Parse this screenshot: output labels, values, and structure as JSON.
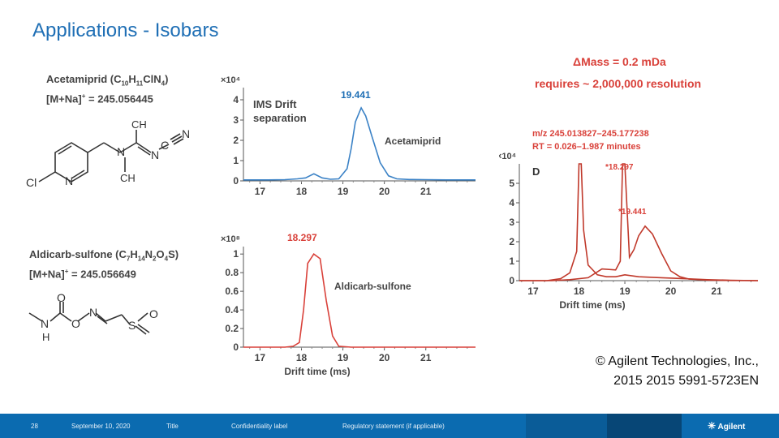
{
  "slide": {
    "title": "Applications - Isobars",
    "copyright_line1": "© Agilent Technologies, Inc.,",
    "copyright_line2": "2015 2015 5991-5723EN"
  },
  "compounds": {
    "acetamiprid": {
      "name": "Acetamiprid (C",
      "sub1": "10",
      "h": "H",
      "sub2": "11",
      "rest": "ClN",
      "sub3": "4",
      "close": ")",
      "ion": "[M+Na]",
      "ion_sup": "+",
      "ion_mass": " = 245.056445"
    },
    "aldicarb": {
      "name": "Aldicarb-sulfone (C",
      "sub1": "7",
      "h": "H",
      "sub2": "14",
      "n": "N",
      "sub3": "2",
      "o": "O",
      "sub4": "4",
      "close": "S)",
      "ion": "[M+Na]",
      "ion_sup": "+",
      "ion_mass": " = 245.056649"
    }
  },
  "annotations": {
    "delta_mass": "ΔMass = 0.2 mDa",
    "resolution": "requires ~ 2,000,000 resolution",
    "mz_range": "m/z 245.013827–245.177238",
    "rt_range": "RT = 0.026–1.987 minutes",
    "panel_d": "D",
    "ims_drift": "IMS Drift",
    "separation": "separation",
    "acetamiprid_label": "Acetamiprid",
    "aldicarb_label": "Aldicarb-sulfone",
    "peak1": "19.441",
    "peak2": "18.297",
    "peak_d1": "*18.297",
    "peak_d2": "*19.441"
  },
  "chart_data": [
    {
      "type": "line",
      "title": "",
      "xlabel": "",
      "ylabel": "×10⁴",
      "xlim": [
        16.6,
        22.2
      ],
      "ylim": [
        0,
        4.6
      ],
      "xticks": [
        "17",
        "18",
        "19",
        "20",
        "21"
      ],
      "yticks": [
        "0",
        "1",
        "2",
        "3",
        "4"
      ],
      "color": "#3b82c6",
      "series": [
        {
          "name": "Acetamiprid",
          "x": [
            16.6,
            17.2,
            17.6,
            17.9,
            18.1,
            18.3,
            18.5,
            18.7,
            18.9,
            19.1,
            19.2,
            19.3,
            19.441,
            19.55,
            19.7,
            19.9,
            20.1,
            20.3,
            20.6,
            21.0,
            21.5,
            22.0,
            22.2
          ],
          "y": [
            0.05,
            0.05,
            0.06,
            0.1,
            0.15,
            0.35,
            0.15,
            0.08,
            0.1,
            0.6,
            1.6,
            2.9,
            3.6,
            3.2,
            2.2,
            0.9,
            0.25,
            0.1,
            0.07,
            0.06,
            0.05,
            0.05,
            0.05
          ]
        }
      ]
    },
    {
      "type": "line",
      "title": "",
      "xlabel": "Drift time (ms)",
      "ylabel": "×10⁸",
      "xlim": [
        16.6,
        22.2
      ],
      "ylim": [
        0,
        1.08
      ],
      "xticks": [
        "17",
        "18",
        "19",
        "20",
        "21"
      ],
      "yticks": [
        "0",
        "0.2",
        "0.4",
        "0.6",
        "0.8",
        "1"
      ],
      "color": "#d9413a",
      "series": [
        {
          "name": "Aldicarb-sulfone",
          "x": [
            16.6,
            17.6,
            17.8,
            17.95,
            18.05,
            18.15,
            18.297,
            18.45,
            18.6,
            18.75,
            18.9,
            19.2,
            20.0,
            21.0,
            22.2
          ],
          "y": [
            0,
            0,
            0.01,
            0.05,
            0.4,
            0.9,
            1.0,
            0.95,
            0.5,
            0.12,
            0.01,
            0,
            0,
            0,
            0
          ]
        }
      ]
    },
    {
      "type": "line",
      "title": "",
      "xlabel": "Drift time (ms)",
      "ylabel": "×10⁴",
      "xlim": [
        16.7,
        21.9
      ],
      "ylim": [
        0,
        6
      ],
      "xticks": [
        "17",
        "18",
        "19",
        "20",
        "21"
      ],
      "yticks": [
        "0",
        "1",
        "2",
        "3",
        "4",
        "5"
      ],
      "color": "#c0392b",
      "series": [
        {
          "name": "Aldicarb-sulfone",
          "x": [
            16.7,
            17.3,
            17.6,
            17.8,
            17.95,
            18.0,
            18.05,
            18.1,
            18.2,
            18.4,
            18.6,
            18.8,
            19.0,
            19.3,
            19.8,
            20.3,
            20.8,
            21.3,
            21.9
          ],
          "y": [
            0,
            0,
            0.1,
            0.4,
            1.5,
            6,
            6,
            2.6,
            0.8,
            0.3,
            0.2,
            0.2,
            0.3,
            0.2,
            0.15,
            0.1,
            0.05,
            0.02,
            0
          ],
          "note": ""
        },
        {
          "name": "Acetamiprid",
          "x": [
            16.7,
            17.4,
            17.8,
            18.2,
            18.5,
            18.8,
            18.9,
            18.95,
            19.0,
            19.1,
            19.2,
            19.3,
            19.441,
            19.6,
            19.8,
            20.0,
            20.2,
            20.4,
            20.8,
            21.3,
            21.9
          ],
          "y": [
            0,
            0,
            0.05,
            0.15,
            0.6,
            0.55,
            1.0,
            6,
            6,
            1.2,
            1.6,
            2.3,
            2.8,
            2.4,
            1.4,
            0.5,
            0.2,
            0.08,
            0.03,
            0.01,
            0
          ]
        }
      ]
    }
  ],
  "footer": {
    "page": "28",
    "date": "September 10, 2020",
    "title": "Title",
    "label": "Confidentiality label",
    "regulatory": "Regulatory statement (if applicable)",
    "logo": "Agilent"
  },
  "colors": {
    "title_blue": "#1f6fb5",
    "accent_red": "#d9413a",
    "footer_blue": "#0b6bb0"
  }
}
